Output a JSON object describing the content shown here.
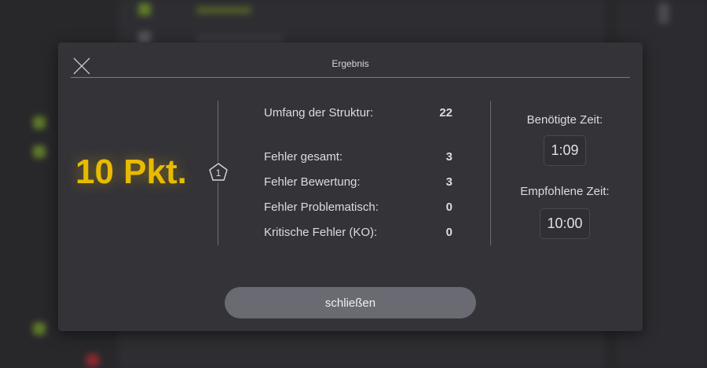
{
  "dialog": {
    "title": "Ergebnis",
    "close_icon": "close-x-icon",
    "score": "10 Pkt.",
    "badge": {
      "icon": "pentagon-icon",
      "value": "1"
    },
    "stats": [
      {
        "label": "Umfang der Struktur:",
        "value": "22"
      },
      {
        "label": "Fehler gesamt:",
        "value": "3"
      },
      {
        "label": "Fehler Bewertung:",
        "value": "3"
      },
      {
        "label": "Fehler Problematisch:",
        "value": "0"
      },
      {
        "label": "Kritische Fehler (KO):",
        "value": "0"
      }
    ],
    "time_needed_label": "Benötigte Zeit:",
    "time_needed": "1:09",
    "time_recommended_label": "Empfohlene Zeit:",
    "time_recommended": "10:00",
    "close_button": "schließen"
  },
  "colors": {
    "accent": "#e8bb00",
    "modal_bg": "#333338",
    "button_bg": "#6a6a72"
  }
}
